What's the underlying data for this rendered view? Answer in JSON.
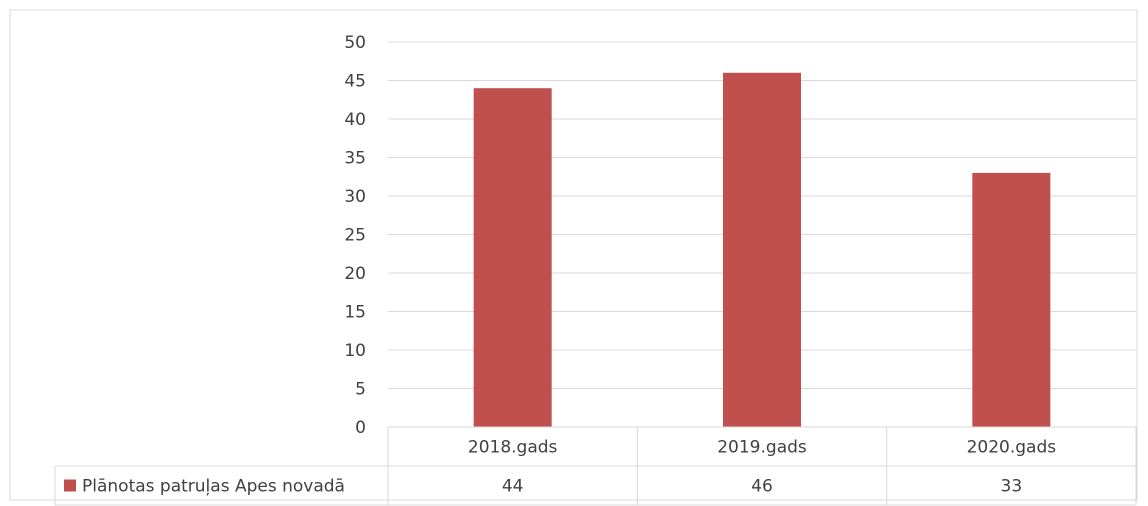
{
  "chart_data": {
    "type": "bar",
    "categories": [
      "2018.gads",
      "2019.gads",
      "2020.gads"
    ],
    "series": [
      {
        "name": "Plānotas patruļas Apes novadā",
        "values": [
          44,
          46,
          33
        ],
        "color": "#c0504d"
      }
    ],
    "ylim": [
      0,
      50
    ],
    "yticks": [
      0,
      5,
      10,
      15,
      20,
      25,
      30,
      35,
      40,
      45,
      50
    ],
    "grid": true,
    "legend": "data-table",
    "data_table": true
  }
}
